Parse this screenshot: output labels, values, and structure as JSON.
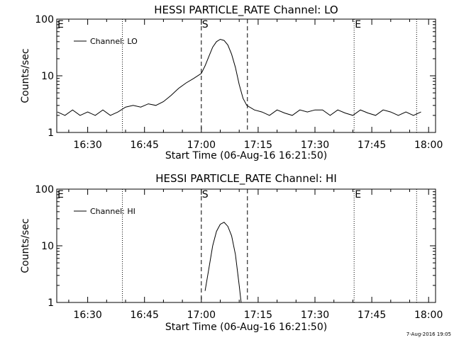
{
  "chart_data": [
    {
      "type": "line",
      "title": "HESSI PARTICLE_RATE Channel: LO",
      "xlabel": "Start Time (06-Aug-16 16:21:50)",
      "ylabel": "Counts/sec",
      "yscale": "log",
      "ylim": [
        1,
        100
      ],
      "xlim": [
        "16:21:50",
        "18:01:50"
      ],
      "x_ticks": [
        "16:30",
        "16:45",
        "17:00",
        "17:15",
        "17:30",
        "17:45",
        "18:00"
      ],
      "y_ticks": [
        "1",
        "10",
        "100"
      ],
      "legend": {
        "position": "top-left",
        "entries": [
          "Channel: LO"
        ]
      },
      "markers": [
        {
          "label": "E",
          "time": "16:21:50",
          "style": "dotted"
        },
        {
          "label": "",
          "time": "16:39:10",
          "style": "dotted"
        },
        {
          "label": "S",
          "time": "17:00:00",
          "style": "dashed"
        },
        {
          "label": "",
          "time": "17:12:10",
          "style": "dashed"
        },
        {
          "label": "E",
          "time": "17:40:20",
          "style": "dotted"
        },
        {
          "label": "",
          "time": "17:56:50",
          "style": "dotted"
        }
      ],
      "series": [
        {
          "name": "Channel: LO",
          "x": [
            "16:22",
            "16:24",
            "16:26",
            "16:28",
            "16:30",
            "16:32",
            "16:34",
            "16:36",
            "16:38",
            "16:40",
            "16:42",
            "16:44",
            "16:46",
            "16:48",
            "16:50",
            "16:52",
            "16:54",
            "16:56",
            "16:58",
            "17:00",
            "17:01",
            "17:02",
            "17:03",
            "17:04",
            "17:05",
            "17:06",
            "17:07",
            "17:08",
            "17:09",
            "17:10",
            "17:11",
            "17:12",
            "17:14",
            "17:16",
            "17:18",
            "17:20",
            "17:22",
            "17:24",
            "17:26",
            "17:28",
            "17:30",
            "17:32",
            "17:34",
            "17:36",
            "17:38",
            "17:40",
            "17:42",
            "17:44",
            "17:46",
            "17:48",
            "17:50",
            "17:52",
            "17:54",
            "17:56",
            "17:58"
          ],
          "values": [
            2.3,
            2.0,
            2.5,
            2.0,
            2.3,
            2.0,
            2.5,
            2.0,
            2.3,
            2.8,
            3.0,
            2.8,
            3.2,
            3.0,
            3.5,
            4.5,
            6.0,
            7.5,
            9.0,
            11,
            15,
            22,
            32,
            40,
            44,
            42,
            35,
            24,
            14,
            7,
            4,
            3,
            2.5,
            2.3,
            2.0,
            2.5,
            2.2,
            2.0,
            2.5,
            2.3,
            2.5,
            2.5,
            2.0,
            2.5,
            2.2,
            2.0,
            2.5,
            2.2,
            2.0,
            2.5,
            2.3,
            2.0,
            2.3,
            2.0,
            2.3
          ]
        }
      ]
    },
    {
      "type": "line",
      "title": "HESSI PARTICLE_RATE Channel: HI",
      "xlabel": "Start Time (06-Aug-16 16:21:50)",
      "ylabel": "Counts/sec",
      "yscale": "log",
      "ylim": [
        1,
        100
      ],
      "xlim": [
        "16:21:50",
        "18:01:50"
      ],
      "x_ticks": [
        "16:30",
        "16:45",
        "17:00",
        "17:15",
        "17:30",
        "17:45",
        "18:00"
      ],
      "y_ticks": [
        "1",
        "10",
        "100"
      ],
      "legend": {
        "position": "top-left",
        "entries": [
          "Channel: HI"
        ]
      },
      "markers": [
        {
          "label": "E",
          "time": "16:21:50",
          "style": "dotted"
        },
        {
          "label": "",
          "time": "16:39:10",
          "style": "dotted"
        },
        {
          "label": "S",
          "time": "17:00:00",
          "style": "dashed"
        },
        {
          "label": "",
          "time": "17:12:10",
          "style": "dashed"
        },
        {
          "label": "E",
          "time": "17:40:20",
          "style": "dotted"
        },
        {
          "label": "",
          "time": "17:56:50",
          "style": "dotted"
        }
      ],
      "series": [
        {
          "name": "Channel: HI",
          "x": [
            "17:01",
            "17:02",
            "17:03",
            "17:04",
            "17:05",
            "17:06",
            "17:07",
            "17:08",
            "17:09",
            "17:10",
            "17:10:30"
          ],
          "values": [
            1.6,
            4,
            10,
            18,
            24,
            26,
            22,
            15,
            7,
            2,
            1
          ]
        }
      ]
    }
  ],
  "footer": {
    "timestamp": "7-Aug-2016 19:05"
  }
}
